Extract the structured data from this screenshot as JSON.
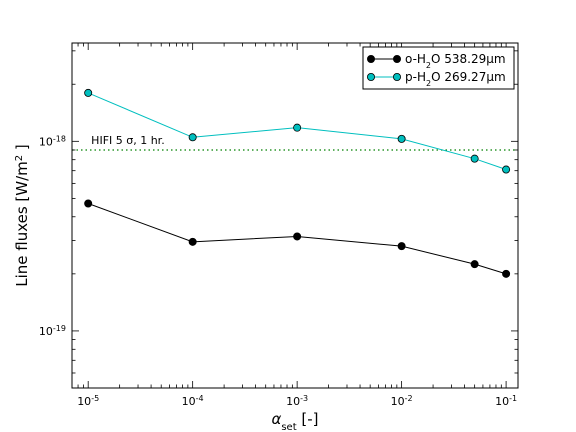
{
  "chart_data": {
    "type": "line",
    "xscale": "log",
    "yscale": "log",
    "xlim": [
      7e-06,
      0.13
    ],
    "ylim": [
      5e-20,
      3.3e-18
    ],
    "x": [
      1e-05,
      0.0001,
      0.001,
      0.01,
      0.05,
      0.1
    ],
    "xticks": [
      {
        "value": 1e-05,
        "base": "10",
        "exp": "-5"
      },
      {
        "value": 0.0001,
        "base": "10",
        "exp": "-4"
      },
      {
        "value": 0.001,
        "base": "10",
        "exp": "-3"
      },
      {
        "value": 0.01,
        "base": "10",
        "exp": "-2"
      },
      {
        "value": 0.1,
        "base": "10",
        "exp": "-1"
      }
    ],
    "yticks": [
      {
        "value": 1e-19,
        "base": "10",
        "exp": "-19"
      },
      {
        "value": 1e-18,
        "base": "10",
        "exp": "-18"
      }
    ],
    "xlabel": {
      "main": "α",
      "sub": "set",
      "rest": " [-]"
    },
    "ylabel": {
      "main": "Line fluxes [W/m",
      "sup": "2",
      "rest": " ]"
    },
    "series": [
      {
        "name": "o-H₂O 538.29μm",
        "color": "#000000",
        "values": [
          4.7e-19,
          2.95e-19,
          3.15e-19,
          2.8e-19,
          2.25e-19,
          2e-19
        ]
      },
      {
        "name": "p-H₂O 269.27μm",
        "color": "#00bfbf",
        "values": [
          1.8e-18,
          1.05e-18,
          1.18e-18,
          1.03e-18,
          8.1e-19,
          7.1e-19
        ]
      }
    ],
    "reference_line": {
      "label": "HIFI 5 σ, 1 hr.",
      "value": 9e-19,
      "color": "#008000",
      "style": "dotted"
    },
    "legend": {
      "placement": "top-right",
      "entries": [
        {
          "prefix": "o-H",
          "sub": "2",
          "suffix": "O 538.29μm"
        },
        {
          "prefix": "p-H",
          "sub": "2",
          "suffix": "O 269.27μm"
        }
      ]
    },
    "grid": false
  }
}
